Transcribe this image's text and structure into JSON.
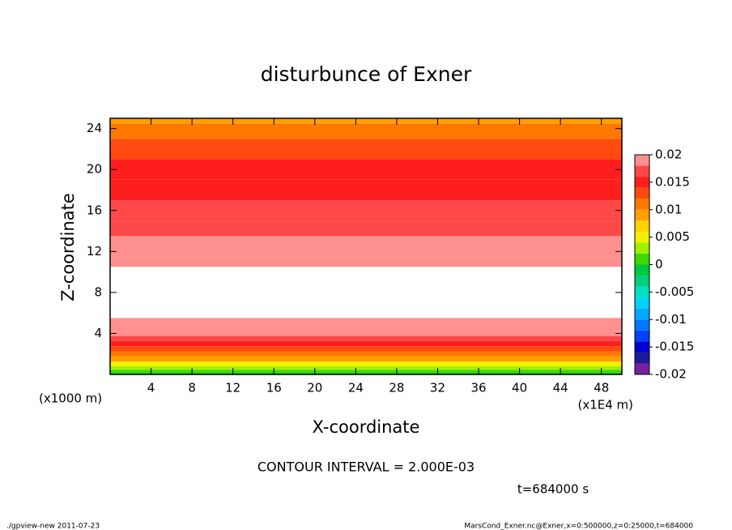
{
  "chart_data": {
    "type": "contour",
    "title": "disturbunce of Exner",
    "xlabel": "X-coordinate",
    "ylabel": "Z-coordinate",
    "xunit": "(x1E4 m)",
    "yunit": "(x1000 m)",
    "xlim": [
      0,
      50
    ],
    "xticks": [
      4,
      8,
      12,
      16,
      20,
      24,
      28,
      32,
      36,
      40,
      44,
      48
    ],
    "ylim": [
      0,
      25
    ],
    "yticks": [
      4,
      8,
      12,
      16,
      20,
      24
    ],
    "z": [
      0,
      0.3,
      0.6,
      1,
      1.5,
      2,
      2.5,
      3,
      3.5,
      4,
      4.5,
      5,
      6,
      7,
      8,
      9,
      10,
      11,
      12,
      13,
      14,
      16,
      18,
      20,
      22,
      24,
      25
    ],
    "values": [
      -0.001,
      0.001,
      0.003,
      0.005,
      0.008,
      0.01,
      0.012,
      0.014,
      0.016,
      0.018,
      0.019,
      0.02,
      0.021,
      0.022,
      0.022,
      0.022,
      0.021,
      0.02,
      0.019,
      0.018,
      0.017,
      0.0165,
      0.015,
      0.014,
      0.012,
      0.01,
      0.009
    ],
    "levels": [
      -0.02,
      0.02
    ],
    "interval": 0.002,
    "colors": [
      "#7a1fa0",
      "#1a1a9a",
      "#0000d0",
      "#0040ff",
      "#0078ff",
      "#00a8ff",
      "#00d0ff",
      "#00e0c0",
      "#00d080",
      "#00c840",
      "#40d800",
      "#a0f000",
      "#f0f000",
      "#ffd200",
      "#ffa000",
      "#ff7800",
      "#ff4a10",
      "#ff1e1e",
      "#ff4848",
      "#ff9090"
    ],
    "over_color": "#ffffff",
    "cticks": [
      -0.02,
      -0.015,
      -0.01,
      -0.005,
      0,
      0.005,
      0.01,
      0.015,
      0.02
    ],
    "contour_note": "CONTOUR INTERVAL = 2.000E-03",
    "time_note": "t=684000 s",
    "footer_left": "./gpview-new  2011-07-23",
    "footer_right": "MarsCond_Exner.nc@Exner,x=0:500000,z=0:25000,t=684000"
  }
}
